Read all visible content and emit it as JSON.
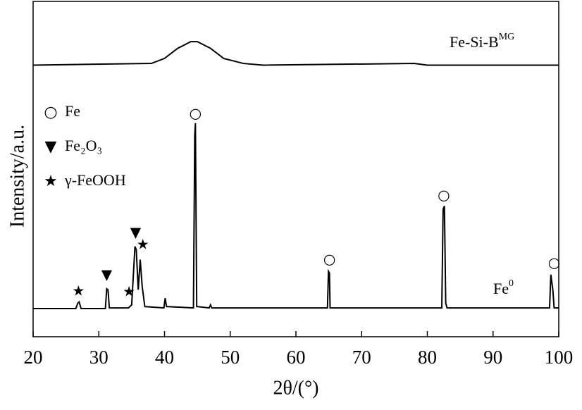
{
  "chart_data": {
    "type": "line",
    "xlabel": "2θ/(°)",
    "ylabel": "Intensity/a.u.",
    "xlim": [
      20,
      100
    ],
    "xticks": [
      20,
      30,
      40,
      50,
      60,
      70,
      80,
      90,
      100
    ],
    "ylim": [
      0,
      100
    ],
    "series": [
      {
        "name": "Fe-Si-B",
        "name_sup": "MG",
        "color": "#000000",
        "x": [
          20,
          38,
          40,
          42,
          44,
          45,
          47,
          49,
          52,
          55,
          78,
          80,
          100
        ],
        "values": [
          81,
          81.5,
          83,
          86,
          88,
          88,
          86,
          83,
          81.5,
          81,
          81.5,
          81,
          81
        ]
      },
      {
        "name": "Fe",
        "name_sup": "0",
        "color": "#000000",
        "x": [
          20,
          26.5,
          26.8,
          27,
          27.3,
          31,
          31.2,
          31.4,
          31.6,
          34.5,
          35,
          35.5,
          35.7,
          36,
          36.3,
          36.6,
          37,
          39.9,
          40.1,
          40.3,
          44.4,
          44.6,
          44.7,
          44.9,
          46.8,
          47,
          47.2,
          64.8,
          64.95,
          65.1,
          65.2,
          82.2,
          82.4,
          82.6,
          82.8,
          83,
          98.6,
          98.8,
          99.1,
          99.3,
          100
        ],
        "values": [
          8.4,
          8.4,
          10,
          10.4,
          8.4,
          8.4,
          14.3,
          14,
          8.6,
          8.6,
          9.5,
          26.9,
          26,
          14,
          23,
          15,
          9,
          8.6,
          11.5,
          9,
          8.6,
          60,
          63.7,
          9,
          8.6,
          9.5,
          8.6,
          8.6,
          19.5,
          19,
          8.6,
          8.6,
          38,
          39,
          10,
          8.6,
          8.6,
          18.5,
          14,
          8.6,
          8.6
        ]
      }
    ],
    "phases": [
      {
        "symbol": "○",
        "label": "Fe",
        "peaks": [
          {
            "x": 44.7,
            "y": 66.4
          },
          {
            "x": 65.1,
            "y": 22.9
          },
          {
            "x": 82.5,
            "y": 42
          },
          {
            "x": 99.3,
            "y": 21.8
          }
        ]
      },
      {
        "symbol": "▼",
        "label": "Fe₂O₃",
        "peaks": [
          {
            "x": 31.2,
            "y": 18.3
          },
          {
            "x": 35.6,
            "y": 30.9
          }
        ]
      },
      {
        "symbol": "★",
        "label": "γ-FeOOH",
        "peaks": [
          {
            "x": 26.9,
            "y": 13.4
          },
          {
            "x": 34.6,
            "y": 13.2
          },
          {
            "x": 36.7,
            "y": 27.3
          }
        ]
      }
    ]
  }
}
